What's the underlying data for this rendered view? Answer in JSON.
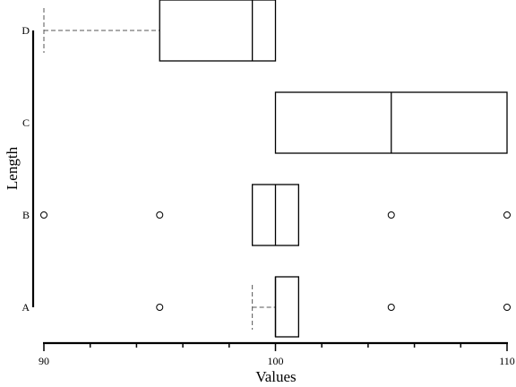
{
  "chart_data": {
    "type": "boxplot",
    "orientation": "horizontal",
    "xlabel": "Values",
    "ylabel": "Length",
    "xlim": [
      90,
      110
    ],
    "x_ticks": [
      90,
      100,
      110
    ],
    "x_minor_step": 2,
    "categories": [
      "A",
      "B",
      "C",
      "D"
    ],
    "boxes": [
      {
        "category": "A",
        "whisker_low": 99,
        "q1": 100,
        "median": 100,
        "q3": 101,
        "whisker_high": 101,
        "outliers": [
          95,
          105,
          110
        ]
      },
      {
        "category": "B",
        "whisker_low": 99,
        "q1": 99,
        "median": 100,
        "q3": 101,
        "whisker_high": 101,
        "outliers": [
          90,
          95,
          105,
          110
        ]
      },
      {
        "category": "C",
        "whisker_low": 100,
        "q1": 100,
        "median": 105,
        "q3": 110,
        "whisker_high": 110,
        "outliers": []
      },
      {
        "category": "D",
        "whisker_low": 90,
        "q1": 95,
        "median": 99,
        "q3": 100,
        "whisker_high": 100,
        "outliers": []
      }
    ],
    "grid": false,
    "legend": "none"
  }
}
